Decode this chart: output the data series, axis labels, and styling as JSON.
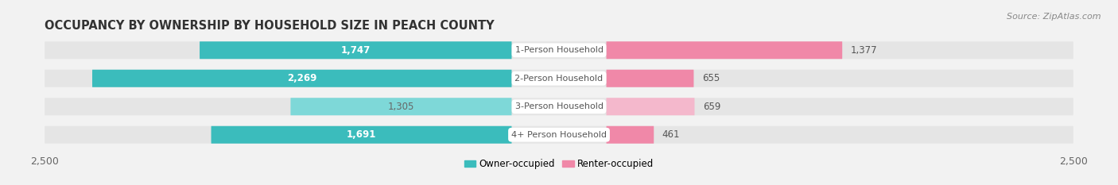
{
  "title": "OCCUPANCY BY OWNERSHIP BY HOUSEHOLD SIZE IN PEACH COUNTY",
  "source": "Source: ZipAtlas.com",
  "categories": [
    "1-Person Household",
    "2-Person Household",
    "3-Person Household",
    "4+ Person Household"
  ],
  "owner_values": [
    1747,
    2269,
    1305,
    1691
  ],
  "renter_values": [
    1377,
    655,
    659,
    461
  ],
  "owner_color": "#3BBCBC",
  "renter_color": "#F088A8",
  "owner_color_light": "#7ED8D8",
  "renter_color_light": "#F4B8CC",
  "background_color": "#f2f2f2",
  "bar_bg_color": "#e5e5e5",
  "xlim": 2500,
  "title_fontsize": 10.5,
  "source_fontsize": 8,
  "label_fontsize": 8.5,
  "tick_fontsize": 9,
  "legend_fontsize": 8.5,
  "white_text_rows": [
    0,
    1,
    3
  ],
  "dark_text_rows": [
    2
  ],
  "value_text_white": "#ffffff",
  "value_text_dark": "#666666",
  "center_label_color": "#555555"
}
